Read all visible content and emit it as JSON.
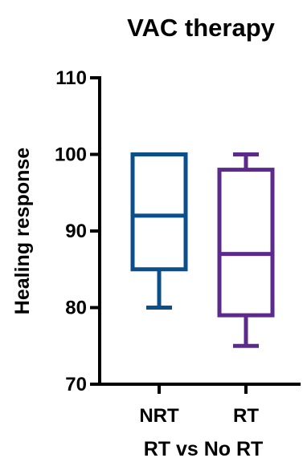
{
  "chart_data": {
    "type": "boxplot",
    "title": "VAC therapy",
    "xlabel": "RT vs No RT",
    "ylabel": "Healing response",
    "ylim": [
      70,
      110
    ],
    "yticks": [
      70,
      80,
      90,
      100,
      110
    ],
    "ytick_labels": [
      "70",
      "80",
      "90",
      "100",
      "110"
    ],
    "categories": [
      "NRT",
      "RT"
    ],
    "grid": false,
    "legend": "none",
    "series": [
      {
        "category": "NRT",
        "min": 80,
        "q1": 85,
        "median": 92,
        "q3": 100,
        "max": 100,
        "color": "#0B4F8A"
      },
      {
        "category": "RT",
        "min": 75,
        "q1": 79,
        "median": 87,
        "q3": 98,
        "max": 100,
        "color": "#5B2A8C"
      }
    ]
  }
}
